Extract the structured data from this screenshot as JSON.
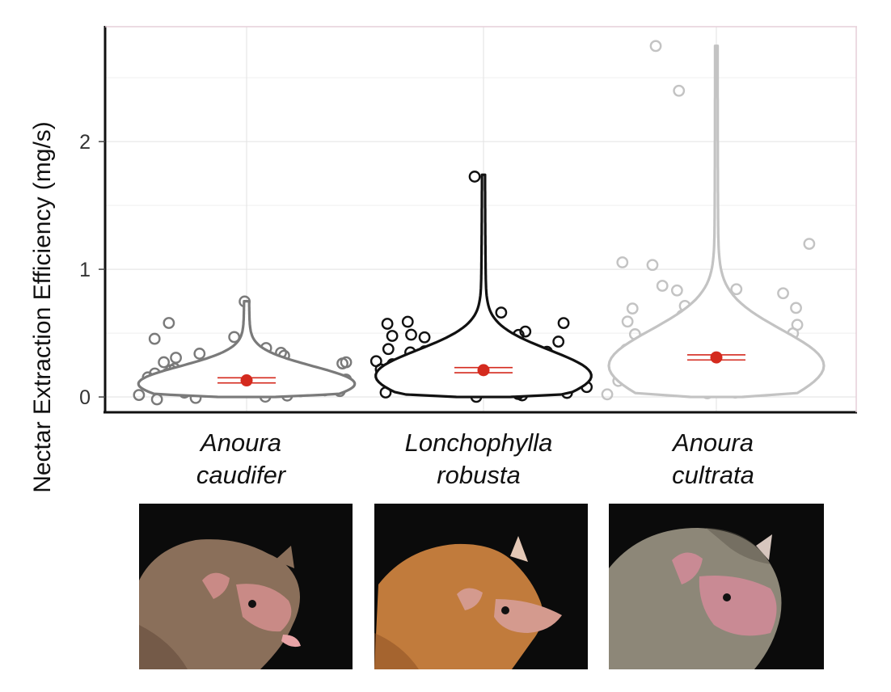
{
  "chart_data": {
    "type": "violin",
    "ylabel": "Nectar Extraction Efficiency (mg/s)",
    "xlabel": "",
    "ylim": [
      -0.12,
      2.9
    ],
    "yticks": [
      0,
      1,
      2
    ],
    "grid": true,
    "series": [
      {
        "name": "Anoura caudifer",
        "label_line1": "Anoura",
        "label_line2": "caudifer",
        "color": "#7a7a7a",
        "mean": 0.13,
        "ci": [
          0.11,
          0.15
        ],
        "max": 0.75,
        "points": [
          0.75,
          0.57,
          0.47,
          0.47,
          0.38,
          0.35,
          0.33,
          0.32,
          0.31,
          0.3,
          0.29,
          0.28,
          0.27,
          0.26,
          0.25,
          0.25,
          0.24,
          0.23,
          0.22,
          0.22,
          0.21,
          0.2,
          0.19,
          0.19,
          0.18,
          0.17,
          0.17,
          0.16,
          0.15,
          0.14,
          0.13,
          0.12,
          0.12,
          0.11,
          0.1,
          0.09,
          0.08,
          0.07,
          0.06,
          0.05,
          0.05,
          0.04,
          0.03,
          0.02,
          0.01,
          0.01,
          0.0,
          0.0
        ]
      },
      {
        "name": "Lonchophylla robusta",
        "label_line1": "Lonchophylla",
        "label_line2": "robusta",
        "color": "#111111",
        "mean": 0.21,
        "ci": [
          0.19,
          0.23
        ],
        "max": 1.74,
        "points": [
          1.74,
          0.66,
          0.6,
          0.57,
          0.56,
          0.52,
          0.5,
          0.48,
          0.47,
          0.46,
          0.44,
          0.42,
          0.4,
          0.38,
          0.37,
          0.35,
          0.34,
          0.33,
          0.32,
          0.31,
          0.3,
          0.29,
          0.28,
          0.27,
          0.26,
          0.25,
          0.25,
          0.24,
          0.23,
          0.22,
          0.21,
          0.2,
          0.19,
          0.18,
          0.17,
          0.16,
          0.15,
          0.14,
          0.13,
          0.12,
          0.11,
          0.1,
          0.09,
          0.08,
          0.07,
          0.06,
          0.05,
          0.04,
          0.03,
          0.02,
          0.01,
          0.0
        ]
      },
      {
        "name": "Anoura cultrata",
        "label_line1": "Anoura",
        "label_line2": "cultrata",
        "color": "#c3c3c3",
        "mean": 0.31,
        "ci": [
          0.29,
          0.33
        ],
        "max": 2.75,
        "points": [
          2.75,
          2.38,
          1.2,
          1.05,
          1.04,
          0.88,
          0.85,
          0.84,
          0.8,
          0.71,
          0.7,
          0.68,
          0.66,
          0.65,
          0.62,
          0.6,
          0.57,
          0.55,
          0.53,
          0.52,
          0.5,
          0.48,
          0.46,
          0.45,
          0.43,
          0.42,
          0.4,
          0.38,
          0.37,
          0.36,
          0.35,
          0.33,
          0.32,
          0.31,
          0.3,
          0.29,
          0.28,
          0.27,
          0.26,
          0.25,
          0.24,
          0.23,
          0.22,
          0.21,
          0.2,
          0.19,
          0.18,
          0.17,
          0.16,
          0.15,
          0.14,
          0.13,
          0.12,
          0.11,
          0.1,
          0.09,
          0.08,
          0.07,
          0.06,
          0.05,
          0.04,
          0.03,
          0.02,
          0.01
        ]
      }
    ]
  },
  "photos": [
    {
      "species": "Anoura caudifer",
      "fur": "#8a6f5a",
      "fur_dark": "#5e4636",
      "skin": "#c98a86"
    },
    {
      "species": "Lonchophylla robusta",
      "fur": "#c17b3c",
      "fur_dark": "#8a4d22",
      "skin": "#d49a8e"
    },
    {
      "species": "Anoura cultrata",
      "fur": "#8d8778",
      "fur_dark": "#5d584c",
      "skin": "#c98a94"
    }
  ],
  "accent": "#d42a1e"
}
